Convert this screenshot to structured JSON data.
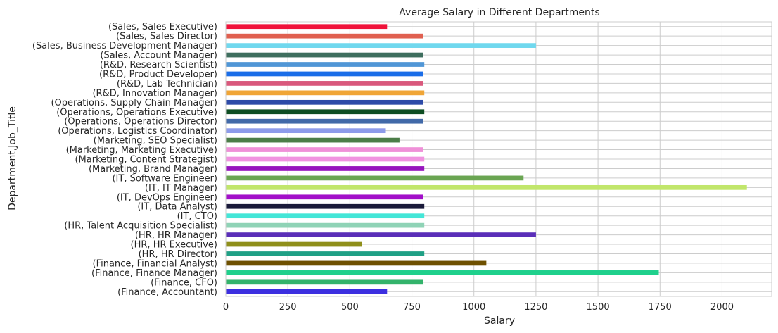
{
  "chart_data": {
    "type": "bar",
    "orientation": "horizontal",
    "title": "Average Salary in Different Departments",
    "xlabel": "Salary",
    "ylabel": "Department,Job_Title",
    "xlim": [
      0,
      2200
    ],
    "xticks": [
      0,
      250,
      500,
      750,
      1000,
      1250,
      1500,
      1750,
      2000
    ],
    "grid": true,
    "categories": [
      "(Finance, Accountant)",
      "(Finance, CFO)",
      "(Finance, Finance Manager)",
      "(Finance, Financial Analyst)",
      "(HR, HR Director)",
      "(HR, HR Executive)",
      "(HR, HR Manager)",
      "(HR, Talent Acquisition Specialist)",
      "(IT, CTO)",
      "(IT, Data Analyst)",
      "(IT, DevOps Engineer)",
      "(IT, IT Manager)",
      "(IT, Software Engineer)",
      "(Marketing, Brand Manager)",
      "(Marketing, Content Strategist)",
      "(Marketing, Marketing Executive)",
      "(Marketing, SEO Specialist)",
      "(Operations, Logistics Coordinator)",
      "(Operations, Operations Director)",
      "(Operations, Operations Executive)",
      "(Operations, Supply Chain Manager)",
      "(R&D, Innovation Manager)",
      "(R&D, Lab Technician)",
      "(R&D, Product Developer)",
      "(R&D, Research Scientist)",
      "(Sales, Account Manager)",
      "(Sales, Business Development Manager)",
      "(Sales, Sales Director)",
      "(Sales, Sales Executive)"
    ],
    "values": [
      650,
      795,
      1745,
      1050,
      800,
      550,
      1250,
      800,
      800,
      800,
      795,
      2100,
      1200,
      800,
      800,
      795,
      700,
      645,
      795,
      800,
      795,
      800,
      795,
      795,
      800,
      795,
      1250,
      795,
      650
    ],
    "colors": [
      "#3c2fe0",
      "#33b36b",
      "#1fd08c",
      "#6e5000",
      "#1fa085",
      "#8f8f1a",
      "#5a2eb8",
      "#8fd3b6",
      "#43e6d7",
      "#1a1a3a",
      "#a20fc9",
      "#c1e66b",
      "#6aa552",
      "#9614bd",
      "#f093e0",
      "#ef90d8",
      "#4b7d48",
      "#8d9bea",
      "#4169a8",
      "#0d4d22",
      "#2d4aa8",
      "#f0a536",
      "#d9587c",
      "#1a6de8",
      "#5096d6",
      "#3e6e5e",
      "#70d8ee",
      "#e06050",
      "#f0123a"
    ]
  }
}
